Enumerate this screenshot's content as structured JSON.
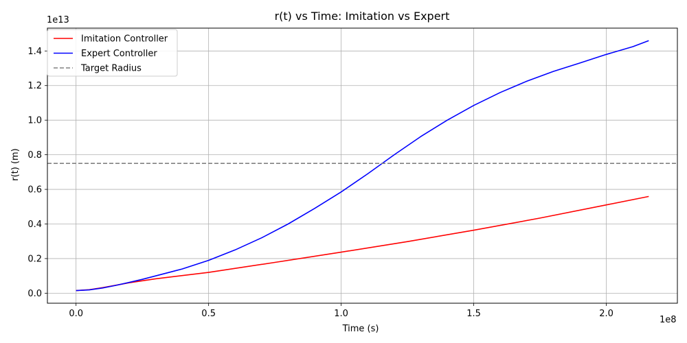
{
  "chart_data": {
    "type": "line",
    "title": "r(t) vs Time: Imitation vs Expert",
    "xlabel": "Time (s)",
    "ylabel": "r(t) (m)",
    "x_multiplier_label": "1e8",
    "y_multiplier_label": "1e13",
    "xlim": [
      -0.108,
      2.268
    ],
    "ylim": [
      -0.058,
      1.532
    ],
    "x_unit_scale": 100000000,
    "y_unit_scale": 10000000000000,
    "x_ticks": [
      0.0,
      0.5,
      1.0,
      1.5,
      2.0
    ],
    "x_tick_labels": [
      "0.0",
      "0.5",
      "1.0",
      "1.5",
      "2.0"
    ],
    "y_ticks": [
      0.0,
      0.2,
      0.4,
      0.6,
      0.8,
      1.0,
      1.2,
      1.4
    ],
    "y_tick_labels": [
      "0.0",
      "0.2",
      "0.4",
      "0.6",
      "0.8",
      "1.0",
      "1.2",
      "1.4"
    ],
    "grid": true,
    "legend_position": "upper left",
    "series": [
      {
        "name": "Imitation Controller",
        "color": "#ff0000",
        "style": "solid",
        "x": [
          0.0,
          0.05,
          0.1,
          0.15,
          0.2,
          0.3,
          0.5,
          0.75,
          1.0,
          1.25,
          1.5,
          1.75,
          2.0,
          2.16
        ],
        "y": [
          0.015,
          0.02,
          0.032,
          0.046,
          0.06,
          0.083,
          0.12,
          0.178,
          0.237,
          0.298,
          0.364,
          0.434,
          0.51,
          0.559
        ]
      },
      {
        "name": "Expert Controller",
        "color": "#0000ff",
        "style": "solid",
        "x": [
          0.0,
          0.05,
          0.1,
          0.15,
          0.2,
          0.25,
          0.3,
          0.4,
          0.5,
          0.6,
          0.7,
          0.8,
          0.9,
          1.0,
          1.1,
          1.2,
          1.3,
          1.4,
          1.5,
          1.6,
          1.7,
          1.8,
          1.9,
          2.0,
          2.1,
          2.16
        ],
        "y": [
          0.015,
          0.019,
          0.03,
          0.045,
          0.062,
          0.08,
          0.1,
          0.14,
          0.19,
          0.25,
          0.32,
          0.4,
          0.49,
          0.585,
          0.69,
          0.8,
          0.905,
          1.0,
          1.085,
          1.16,
          1.225,
          1.282,
          1.33,
          1.38,
          1.425,
          1.46
        ]
      },
      {
        "name": "Target Radius",
        "color": "#808080",
        "style": "dashed",
        "type": "hline",
        "y_value": 0.75
      }
    ]
  }
}
